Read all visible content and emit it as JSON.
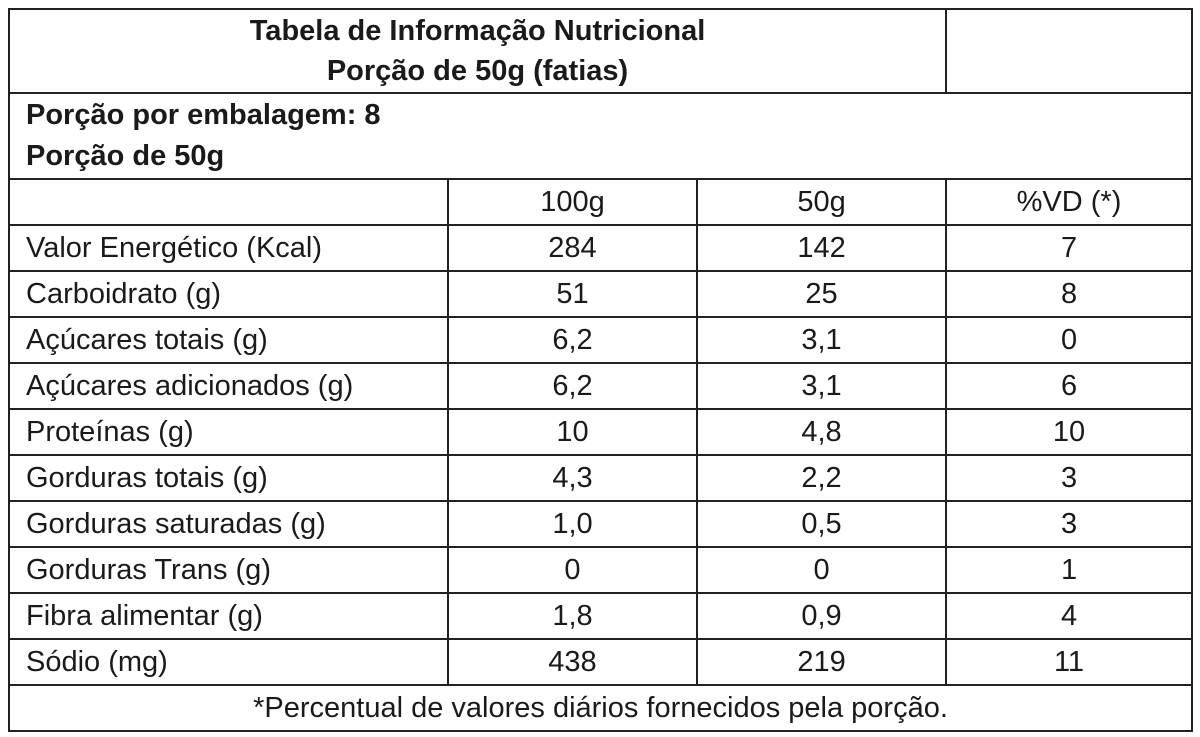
{
  "header": {
    "title": "Tabela de Informação Nutricional",
    "subtitle": "Porção de 50g (fatias)"
  },
  "servings": {
    "per_package": "Porção por embalagem: 8",
    "portion": "Porção de 50g"
  },
  "columns": [
    "100g",
    "50g",
    "%VD (*)"
  ],
  "rows": [
    {
      "label": "Valor Energético (Kcal)",
      "v100": "284",
      "v50": "142",
      "vd": "7"
    },
    {
      "label": "Carboidrato (g)",
      "v100": "51",
      "v50": "25",
      "vd": "8"
    },
    {
      "label": "Açúcares totais (g)",
      "v100": "6,2",
      "v50": "3,1",
      "vd": "0"
    },
    {
      "label": "Açúcares adicionados (g)",
      "v100": "6,2",
      "v50": "3,1",
      "vd": "6"
    },
    {
      "label": "Proteínas (g)",
      "v100": "10",
      "v50": "4,8",
      "vd": "10"
    },
    {
      "label": "Gorduras totais (g)",
      "v100": "4,3",
      "v50": "2,2",
      "vd": "3"
    },
    {
      "label": "Gorduras saturadas (g)",
      "v100": "1,0",
      "v50": "0,5",
      "vd": "3"
    },
    {
      "label": "Gorduras Trans (g)",
      "v100": "0",
      "v50": "0",
      "vd": "1"
    },
    {
      "label": "Fibra alimentar (g)",
      "v100": "1,8",
      "v50": "0,9",
      "vd": "4"
    },
    {
      "label": "Sódio (mg)",
      "v100": "438",
      "v50": "219",
      "vd": "11"
    }
  ],
  "footer": {
    "note": "*Percentual de valores diários fornecidos pela porção."
  }
}
